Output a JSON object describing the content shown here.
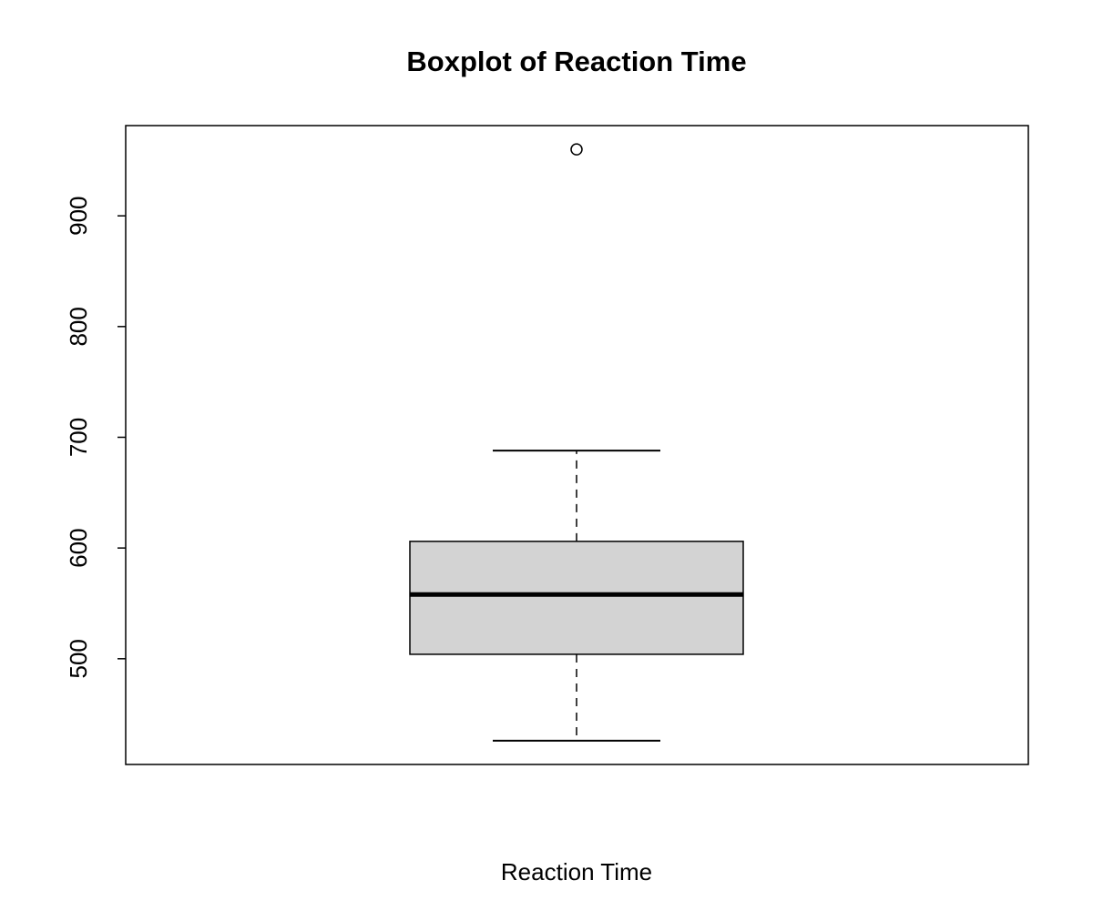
{
  "chart_data": {
    "type": "box",
    "title": "Boxplot of Reaction Time",
    "x_label": "Reaction Time",
    "min": 426,
    "q1": 504,
    "median": 558,
    "q3": 606,
    "max": 688,
    "outliers": [
      960
    ],
    "color": "#d3d3d3",
    "ylim": [
      404.5,
      981.5
    ],
    "yticks": [
      500,
      600,
      700,
      800,
      900
    ]
  }
}
